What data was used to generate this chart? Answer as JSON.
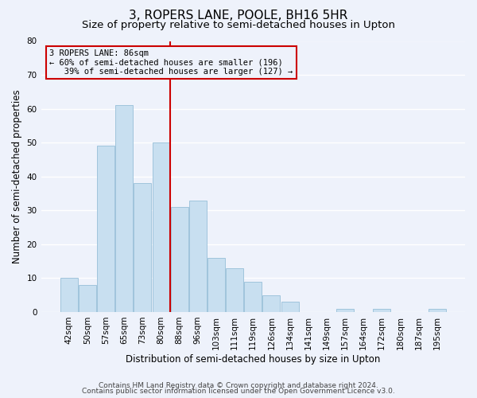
{
  "title": "3, ROPERS LANE, POOLE, BH16 5HR",
  "subtitle": "Size of property relative to semi-detached houses in Upton",
  "xlabel": "Distribution of semi-detached houses by size in Upton",
  "ylabel": "Number of semi-detached properties",
  "categories": [
    "42sqm",
    "50sqm",
    "57sqm",
    "65sqm",
    "73sqm",
    "80sqm",
    "88sqm",
    "96sqm",
    "103sqm",
    "111sqm",
    "119sqm",
    "126sqm",
    "134sqm",
    "141sqm",
    "149sqm",
    "157sqm",
    "164sqm",
    "172sqm",
    "180sqm",
    "187sqm",
    "195sqm"
  ],
  "values": [
    10,
    8,
    49,
    61,
    38,
    50,
    31,
    33,
    16,
    13,
    9,
    5,
    3,
    0,
    0,
    1,
    0,
    1,
    0,
    0,
    1
  ],
  "bar_color": "#c8dff0",
  "bar_edge_color": "#a0c4dc",
  "highlight_line_color": "#cc0000",
  "highlight_bar_index": 6,
  "annotation_line1": "3 ROPERS LANE: 86sqm",
  "annotation_line2": "← 60% of semi-detached houses are smaller (196)",
  "annotation_line3": "   39% of semi-detached houses are larger (127) →",
  "annotation_box_color": "#cc0000",
  "ylim": [
    0,
    80
  ],
  "yticks": [
    0,
    10,
    20,
    30,
    40,
    50,
    60,
    70,
    80
  ],
  "background_color": "#eef2fb",
  "grid_color": "#ffffff",
  "title_fontsize": 11,
  "subtitle_fontsize": 9.5,
  "axis_label_fontsize": 8.5,
  "tick_fontsize": 7.5,
  "annotation_fontsize": 7.5,
  "footer_fontsize": 6.5,
  "footer_line1": "Contains HM Land Registry data © Crown copyright and database right 2024.",
  "footer_line2": "Contains public sector information licensed under the Open Government Licence v3.0."
}
